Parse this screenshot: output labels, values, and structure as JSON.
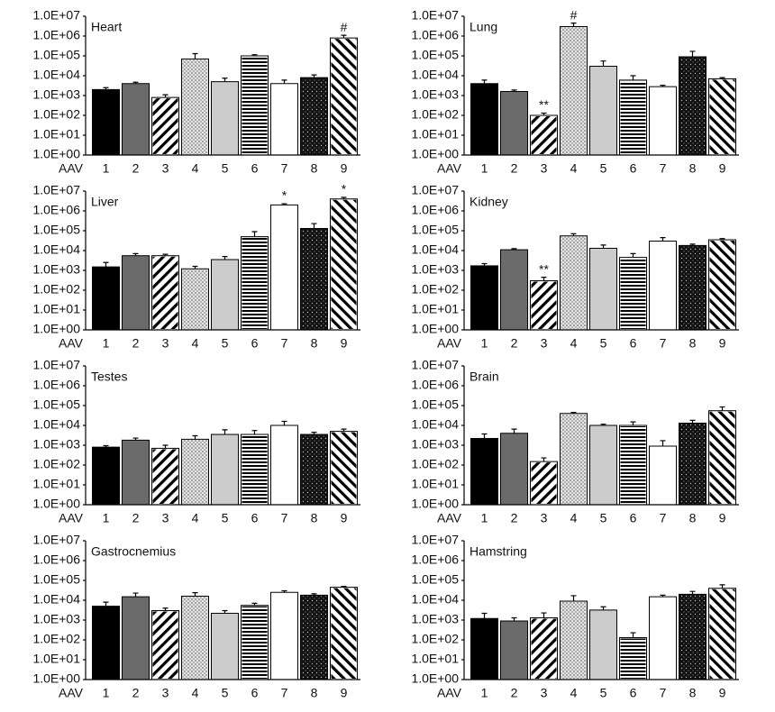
{
  "chart_data": [
    {
      "type": "bar",
      "title": "Heart",
      "xlabel": "AAV",
      "log": true,
      "categories": [
        "1",
        "2",
        "3",
        "4",
        "5",
        "6",
        "7",
        "8",
        "9"
      ],
      "values": [
        2000,
        4000,
        800,
        70000,
        5000,
        100000,
        4000,
        8000,
        800000
      ],
      "errors": [
        500,
        700,
        300,
        60000,
        2500,
        15000,
        2000,
        3000,
        300000
      ],
      "annotations": [
        {
          "category": "9",
          "text": "#"
        }
      ],
      "colors": [
        "#000000",
        "#6b6b6b",
        "#ffffff",
        "#dcdcdc",
        "#cccccc",
        "#ffffff",
        "#ffffff",
        "#111111",
        "#ffffff"
      ],
      "patterns": [
        "solid",
        "solid",
        "back-diagonal",
        "dots",
        "solid",
        "horizontal",
        "solid",
        "dark-dots",
        "diagonal"
      ],
      "ylim": [
        1,
        10000000
      ],
      "yticks": [
        {
          "value": 1,
          "label": "1.0E+00"
        },
        {
          "value": 10,
          "label": "1.0E+01"
        },
        {
          "value": 100,
          "label": "1.0E+02"
        },
        {
          "value": 1000,
          "label": "1.0E+03"
        },
        {
          "value": 10000,
          "label": "1.0E+04"
        },
        {
          "value": 100000,
          "label": "1.0E+05"
        },
        {
          "value": 1000000,
          "label": "1.0E+06"
        },
        {
          "value": 10000000,
          "label": "1.0E+07"
        }
      ]
    },
    {
      "type": "bar",
      "title": "Lung",
      "xlabel": "AAV",
      "log": true,
      "categories": [
        "1",
        "2",
        "3",
        "4",
        "5",
        "6",
        "7",
        "8",
        "9"
      ],
      "values": [
        4000,
        1600,
        100,
        3000000,
        30000,
        6000,
        2800,
        90000,
        7000
      ],
      "errors": [
        2000,
        300,
        30,
        1500000,
        25000,
        4000,
        500,
        80000,
        1000
      ],
      "annotations": [
        {
          "category": "3",
          "text": "**"
        },
        {
          "category": "4",
          "text": "#"
        }
      ],
      "colors": [
        "#000000",
        "#6b6b6b",
        "#ffffff",
        "#dcdcdc",
        "#cccccc",
        "#ffffff",
        "#ffffff",
        "#111111",
        "#ffffff"
      ],
      "patterns": [
        "solid",
        "solid",
        "back-diagonal",
        "dots",
        "solid",
        "horizontal",
        "solid",
        "dark-dots",
        "diagonal"
      ],
      "ylim": [
        1,
        10000000
      ],
      "yticks": [
        {
          "value": 1,
          "label": "1.0E+00"
        },
        {
          "value": 10,
          "label": "1.0E+01"
        },
        {
          "value": 100,
          "label": "1.0E+02"
        },
        {
          "value": 1000,
          "label": "1.0E+03"
        },
        {
          "value": 10000,
          "label": "1.0E+04"
        },
        {
          "value": 100000,
          "label": "1.0E+05"
        },
        {
          "value": 1000000,
          "label": "1.0E+06"
        },
        {
          "value": 10000000,
          "label": "1.0E+07"
        }
      ]
    },
    {
      "type": "bar",
      "title": "Liver",
      "xlabel": "AAV",
      "log": true,
      "categories": [
        "1",
        "2",
        "3",
        "4",
        "5",
        "6",
        "7",
        "8",
        "9"
      ],
      "values": [
        1500,
        5500,
        5500,
        1200,
        3500,
        50000,
        2000000,
        130000,
        4000000
      ],
      "errors": [
        1000,
        1500,
        1000,
        400,
        1500,
        40000,
        300000,
        100000,
        800000
      ],
      "annotations": [
        {
          "category": "7",
          "text": "*"
        },
        {
          "category": "9",
          "text": "*"
        }
      ],
      "colors": [
        "#000000",
        "#6b6b6b",
        "#ffffff",
        "#dcdcdc",
        "#cccccc",
        "#ffffff",
        "#ffffff",
        "#111111",
        "#ffffff"
      ],
      "patterns": [
        "solid",
        "solid",
        "back-diagonal",
        "dots",
        "solid",
        "horizontal",
        "solid",
        "dark-dots",
        "diagonal"
      ],
      "ylim": [
        1,
        10000000
      ],
      "yticks": [
        {
          "value": 1,
          "label": "1.0E+00"
        },
        {
          "value": 10,
          "label": "1.0E+01"
        },
        {
          "value": 100,
          "label": "1.0E+02"
        },
        {
          "value": 1000,
          "label": "1.0E+03"
        },
        {
          "value": 10000,
          "label": "1.0E+04"
        },
        {
          "value": 100000,
          "label": "1.0E+05"
        },
        {
          "value": 1000000,
          "label": "1.0E+06"
        },
        {
          "value": 10000000,
          "label": "1.0E+07"
        }
      ]
    },
    {
      "type": "bar",
      "title": "Kidney",
      "xlabel": "AAV",
      "log": true,
      "categories": [
        "1",
        "2",
        "3",
        "4",
        "5",
        "6",
        "7",
        "8",
        "9"
      ],
      "values": [
        1700,
        11000,
        300,
        55000,
        13000,
        4500,
        30000,
        18000,
        35000
      ],
      "errors": [
        500,
        1500,
        150,
        15000,
        6000,
        2500,
        15000,
        3000,
        5000
      ],
      "annotations": [
        {
          "category": "3",
          "text": "**"
        }
      ],
      "colors": [
        "#000000",
        "#6b6b6b",
        "#ffffff",
        "#dcdcdc",
        "#cccccc",
        "#ffffff",
        "#ffffff",
        "#111111",
        "#ffffff"
      ],
      "patterns": [
        "solid",
        "solid",
        "back-diagonal",
        "dots",
        "solid",
        "horizontal",
        "solid",
        "dark-dots",
        "diagonal"
      ],
      "ylim": [
        1,
        10000000
      ],
      "yticks": [
        {
          "value": 1,
          "label": "1.0E+00"
        },
        {
          "value": 10,
          "label": "1.0E+01"
        },
        {
          "value": 100,
          "label": "1.0E+02"
        },
        {
          "value": 1000,
          "label": "1.0E+03"
        },
        {
          "value": 10000,
          "label": "1.0E+04"
        },
        {
          "value": 100000,
          "label": "1.0E+05"
        },
        {
          "value": 1000000,
          "label": "1.0E+06"
        },
        {
          "value": 10000000,
          "label": "1.0E+07"
        }
      ]
    },
    {
      "type": "bar",
      "title": "Testes",
      "xlabel": "AAV",
      "log": true,
      "categories": [
        "1",
        "2",
        "3",
        "4",
        "5",
        "6",
        "7",
        "8",
        "9"
      ],
      "values": [
        800,
        1800,
        700,
        2000,
        3500,
        3500,
        10000,
        3500,
        5000
      ],
      "errors": [
        150,
        500,
        300,
        1000,
        2500,
        2000,
        6000,
        1000,
        1500
      ],
      "annotations": [],
      "colors": [
        "#000000",
        "#6b6b6b",
        "#ffffff",
        "#dcdcdc",
        "#cccccc",
        "#ffffff",
        "#ffffff",
        "#111111",
        "#ffffff"
      ],
      "patterns": [
        "solid",
        "solid",
        "back-diagonal",
        "dots",
        "solid",
        "horizontal",
        "solid",
        "dark-dots",
        "diagonal"
      ],
      "ylim": [
        1,
        10000000
      ],
      "yticks": [
        {
          "value": 1,
          "label": "1.0E+00"
        },
        {
          "value": 10,
          "label": "1.0E+01"
        },
        {
          "value": 100,
          "label": "1.0E+02"
        },
        {
          "value": 1000,
          "label": "1.0E+03"
        },
        {
          "value": 10000,
          "label": "1.0E+04"
        },
        {
          "value": 100000,
          "label": "1.0E+05"
        },
        {
          "value": 1000000,
          "label": "1.0E+06"
        },
        {
          "value": 10000000,
          "label": "1.0E+07"
        }
      ]
    },
    {
      "type": "bar",
      "title": "Brain",
      "xlabel": "AAV",
      "log": true,
      "categories": [
        "1",
        "2",
        "3",
        "4",
        "5",
        "6",
        "7",
        "8",
        "9"
      ],
      "values": [
        2200,
        4000,
        150,
        40000,
        10000,
        10000,
        900,
        13000,
        55000
      ],
      "errors": [
        1500,
        2500,
        80,
        5000,
        1500,
        5000,
        800,
        5000,
        30000
      ],
      "annotations": [],
      "colors": [
        "#000000",
        "#6b6b6b",
        "#ffffff",
        "#dcdcdc",
        "#cccccc",
        "#ffffff",
        "#ffffff",
        "#111111",
        "#ffffff"
      ],
      "patterns": [
        "solid",
        "solid",
        "back-diagonal",
        "dots",
        "solid",
        "horizontal",
        "solid",
        "dark-dots",
        "diagonal"
      ],
      "ylim": [
        1,
        10000000
      ],
      "yticks": [
        {
          "value": 1,
          "label": "1.0E+00"
        },
        {
          "value": 10,
          "label": "1.0E+01"
        },
        {
          "value": 100,
          "label": "1.0E+02"
        },
        {
          "value": 1000,
          "label": "1.0E+03"
        },
        {
          "value": 10000,
          "label": "1.0E+04"
        },
        {
          "value": 100000,
          "label": "1.0E+05"
        },
        {
          "value": 1000000,
          "label": "1.0E+06"
        },
        {
          "value": 10000000,
          "label": "1.0E+07"
        }
      ]
    },
    {
      "type": "bar",
      "title": "Gastrocnemius",
      "xlabel": "AAV",
      "log": true,
      "categories": [
        "1",
        "2",
        "3",
        "4",
        "5",
        "6",
        "7",
        "8",
        "9"
      ],
      "values": [
        5000,
        15000,
        3000,
        16000,
        2200,
        5500,
        25000,
        18000,
        45000
      ],
      "errors": [
        3000,
        8000,
        1000,
        8000,
        800,
        1500,
        5000,
        3000,
        5000
      ],
      "annotations": [],
      "colors": [
        "#000000",
        "#6b6b6b",
        "#ffffff",
        "#dcdcdc",
        "#cccccc",
        "#ffffff",
        "#ffffff",
        "#111111",
        "#ffffff"
      ],
      "patterns": [
        "solid",
        "solid",
        "back-diagonal",
        "dots",
        "solid",
        "horizontal",
        "solid",
        "dark-dots",
        "diagonal"
      ],
      "ylim": [
        1,
        10000000
      ],
      "yticks": [
        {
          "value": 1,
          "label": "1.0E+00"
        },
        {
          "value": 10,
          "label": "1.0E+01"
        },
        {
          "value": 100,
          "label": "1.0E+02"
        },
        {
          "value": 1000,
          "label": "1.0E+03"
        },
        {
          "value": 10000,
          "label": "1.0E+04"
        },
        {
          "value": 100000,
          "label": "1.0E+05"
        },
        {
          "value": 1000000,
          "label": "1.0E+06"
        },
        {
          "value": 10000000,
          "label": "1.0E+07"
        }
      ]
    },
    {
      "type": "bar",
      "title": "Hamstring",
      "xlabel": "AAV",
      "log": true,
      "categories": [
        "1",
        "2",
        "3",
        "4",
        "5",
        "6",
        "7",
        "8",
        "9"
      ],
      "values": [
        1200,
        900,
        1300,
        9000,
        3200,
        130,
        15000,
        20000,
        40000
      ],
      "errors": [
        1000,
        400,
        1000,
        8000,
        1500,
        100,
        3000,
        8000,
        20000
      ],
      "annotations": [],
      "colors": [
        "#000000",
        "#6b6b6b",
        "#ffffff",
        "#dcdcdc",
        "#cccccc",
        "#ffffff",
        "#ffffff",
        "#111111",
        "#ffffff"
      ],
      "patterns": [
        "solid",
        "solid",
        "back-diagonal",
        "dots",
        "solid",
        "horizontal",
        "solid",
        "dark-dots",
        "diagonal"
      ],
      "ylim": [
        1,
        10000000
      ],
      "yticks": [
        {
          "value": 1,
          "label": "1.0E+00"
        },
        {
          "value": 10,
          "label": "1.0E+01"
        },
        {
          "value": 100,
          "label": "1.0E+02"
        },
        {
          "value": 1000,
          "label": "1.0E+03"
        },
        {
          "value": 10000,
          "label": "1.0E+04"
        },
        {
          "value": 100000,
          "label": "1.0E+05"
        },
        {
          "value": 1000000,
          "label": "1.0E+06"
        },
        {
          "value": 10000000,
          "label": "1.0E+07"
        }
      ]
    }
  ]
}
